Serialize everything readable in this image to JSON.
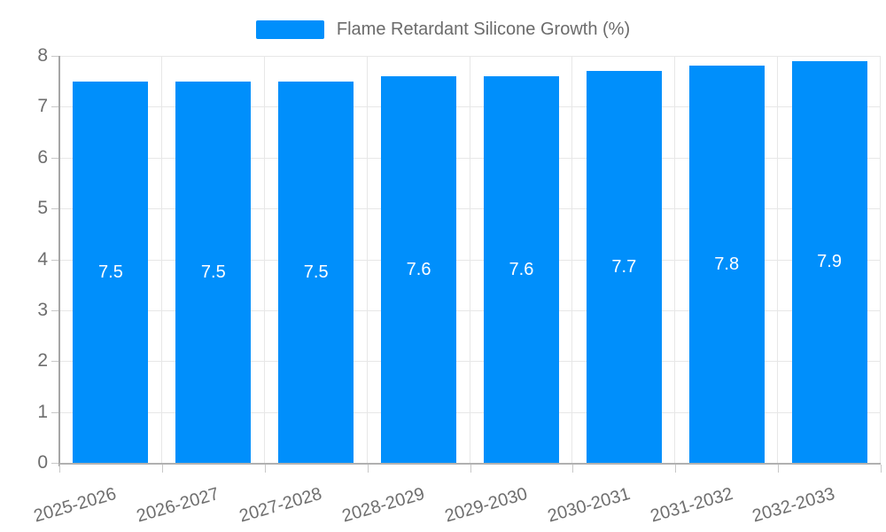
{
  "chart_data": {
    "type": "bar",
    "title": "Flame Retardant Silicone Growth (%)",
    "legend": {
      "label": "Flame Retardant Silicone Growth (%)",
      "position": "top-center",
      "marker_color": "#008FFB"
    },
    "categories": [
      "2025-2026",
      "2026-2027",
      "2027-2028",
      "2028-2029",
      "2029-2030",
      "2030-2031",
      "2031-2032",
      "2032-2033"
    ],
    "values": [
      7.5,
      7.5,
      7.5,
      7.6,
      7.6,
      7.7,
      7.8,
      7.9
    ],
    "data_labels": [
      "7.5",
      "7.5",
      "7.5",
      "7.6",
      "7.6",
      "7.7",
      "7.8",
      "7.9"
    ],
    "xlabel": "",
    "ylabel": "",
    "ylim": [
      0,
      8
    ],
    "yticks": [
      0,
      1,
      2,
      3,
      4,
      5,
      6,
      7,
      8
    ],
    "grid": "on",
    "x_label_rotation_deg": -16,
    "colors": {
      "bar": "#008FFB",
      "data_label": "#ffffff",
      "axis_label": "#6e6e6e",
      "legend_label": "#6b6b6b",
      "gridline": "#e7e7e7",
      "axis_line": "#a6a6a6"
    }
  }
}
